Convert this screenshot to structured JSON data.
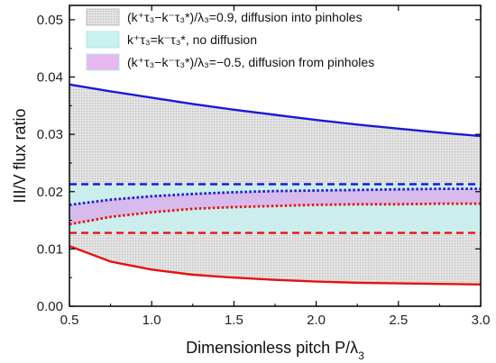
{
  "chart_data": {
    "type": "area",
    "title": "",
    "xlabel": "Dimensionless pitch P/λ3",
    "ylabel": "III/V flux ratio",
    "xlim": [
      0.5,
      3.0
    ],
    "ylim": [
      0.0,
      0.0525
    ],
    "x_ticks": [
      0.5,
      1.0,
      1.5,
      2.0,
      2.5,
      3.0
    ],
    "x_tick_labels": [
      "0.5",
      "1.0",
      "1.5",
      "2.0",
      "2.5",
      "3.0"
    ],
    "y_ticks": [
      0.0,
      0.01,
      0.02,
      0.03,
      0.04,
      0.05
    ],
    "y_tick_labels": [
      "0.00",
      "0.01",
      "0.02",
      "0.03",
      "0.04",
      "0.05"
    ],
    "legend_position": "top",
    "legend": [
      {
        "key": "into",
        "text": "(k⁺τ₃−k⁻τ₃*)/λ₃=0.9, diffusion into pinholes",
        "color": "#d9d9d9",
        "pattern": true
      },
      {
        "key": "none",
        "text": "k⁺τ₃=k⁻τ₃*, no diffusion",
        "color": "#c8f1ef",
        "pattern": false
      },
      {
        "key": "from",
        "text": "(k⁺τ₃−k⁻τ₃*)/λ₃=−0.5, diffusion from pinholes",
        "color": "#e8b8f0",
        "pattern": false
      }
    ],
    "x": [
      0.5,
      0.75,
      1.0,
      1.25,
      1.5,
      1.75,
      2.0,
      2.25,
      2.5,
      2.75,
      3.0
    ],
    "series": [
      {
        "key": "blue_solid",
        "color": "#1a1ad6",
        "dash": "solid",
        "values": [
          0.0387,
          0.0375,
          0.0364,
          0.0353,
          0.0343,
          0.0334,
          0.0325,
          0.0317,
          0.031,
          0.0303,
          0.0297
        ]
      },
      {
        "key": "blue_dash",
        "color": "#1a1ad6",
        "dash": "dashed",
        "values": [
          0.0213,
          0.0213,
          0.0213,
          0.0213,
          0.0213,
          0.0213,
          0.0213,
          0.0213,
          0.0213,
          0.0213,
          0.0213
        ]
      },
      {
        "key": "blue_dot",
        "color": "#1a1ad6",
        "dash": "dotted",
        "values": [
          0.0177,
          0.0186,
          0.0192,
          0.0196,
          0.0199,
          0.0201,
          0.0202,
          0.0203,
          0.0204,
          0.0205,
          0.0205
        ]
      },
      {
        "key": "red_dot",
        "color": "#e81010",
        "dash": "dotted",
        "values": [
          0.0143,
          0.0156,
          0.0164,
          0.017,
          0.0173,
          0.0175,
          0.0177,
          0.0178,
          0.0178,
          0.0179,
          0.0179
        ]
      },
      {
        "key": "red_dash",
        "color": "#e81010",
        "dash": "dashed",
        "values": [
          0.0128,
          0.0128,
          0.0128,
          0.0128,
          0.0128,
          0.0128,
          0.0128,
          0.0128,
          0.0128,
          0.0128,
          0.0128
        ]
      },
      {
        "key": "red_solid",
        "color": "#e81010",
        "dash": "solid",
        "values": [
          0.0105,
          0.0078,
          0.0064,
          0.0055,
          0.005,
          0.0046,
          0.0043,
          0.0041,
          0.004,
          0.0039,
          0.0038
        ]
      }
    ],
    "bands": [
      {
        "key": "into",
        "upper": "blue_solid",
        "lower": "red_solid",
        "color": "#dcdcdc",
        "pattern": true
      },
      {
        "key": "none",
        "upper": "blue_dash",
        "lower": "red_dash",
        "color": "#c8f1ef",
        "pattern": false
      },
      {
        "key": "from",
        "upper": "blue_dot",
        "lower": "red_dot",
        "color": "#d9b2ec",
        "pattern": false
      }
    ]
  }
}
